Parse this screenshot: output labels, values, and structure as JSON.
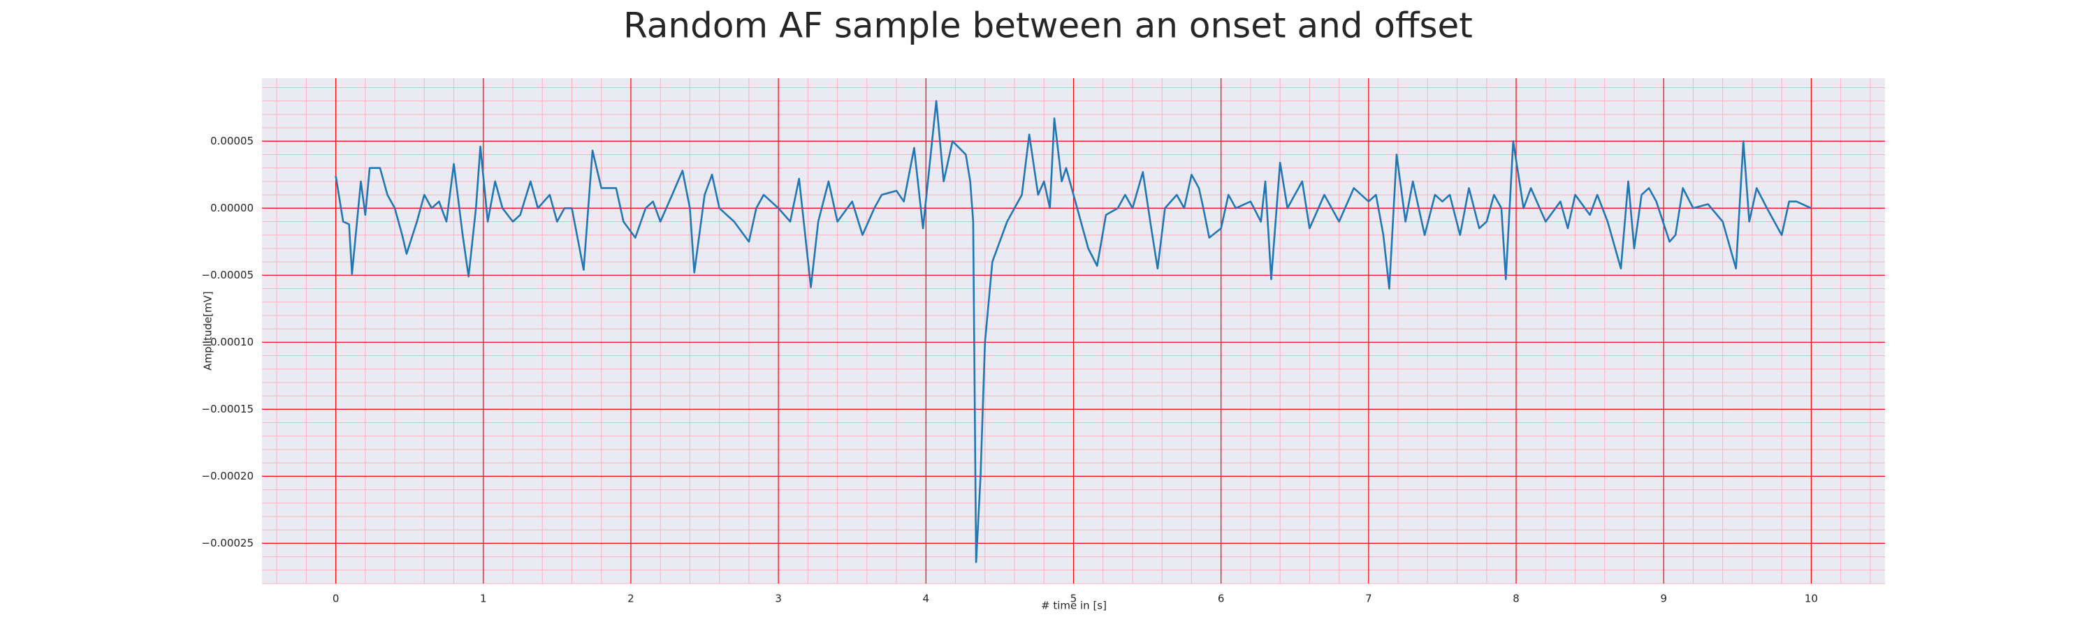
{
  "chart_data": {
    "type": "line",
    "title": "Random AF sample between an onset and offset",
    "xlabel": "# time in [s]",
    "ylabel": "Amplitude[mV]",
    "xlim": [
      -0.5,
      10.5
    ],
    "ylim": [
      -0.00028,
      9.7e-05
    ],
    "xticks": [
      0,
      1,
      2,
      3,
      4,
      5,
      6,
      7,
      8,
      9,
      10
    ],
    "yticks": [
      {
        "value": 5e-05,
        "label": "0.00005"
      },
      {
        "value": 0,
        "label": "0.00000"
      },
      {
        "value": -5e-05,
        "label": "−0.00005"
      },
      {
        "value": -0.0001,
        "label": "−0.00010"
      },
      {
        "value": -0.00015,
        "label": "−0.00015"
      },
      {
        "value": -0.0002,
        "label": "−0.00020"
      },
      {
        "value": -0.00025,
        "label": "−0.00025"
      }
    ],
    "grid": true,
    "minor_grid": true,
    "background": "#eaeaf2",
    "grid_color": "#ff0000",
    "minor_grid_color": "#ffb0c0",
    "series": [
      {
        "color": "#1f77b4",
        "x": [
          0,
          0.05,
          0.09,
          0.11,
          0.17,
          0.2,
          0.23,
          0.3,
          0.35,
          0.4,
          0.45,
          0.48,
          0.55,
          0.6,
          0.65,
          0.7,
          0.75,
          0.8,
          0.86,
          0.9,
          0.95,
          0.98,
          1.03,
          1.08,
          1.13,
          1.2,
          1.25,
          1.32,
          1.37,
          1.45,
          1.5,
          1.55,
          1.6,
          1.68,
          1.74,
          1.8,
          1.9,
          1.95,
          2.03,
          2.1,
          2.15,
          2.2,
          2.28,
          2.35,
          2.4,
          2.43,
          2.5,
          2.55,
          2.6,
          2.7,
          2.8,
          2.85,
          2.9,
          3.0,
          3.08,
          3.14,
          3.22,
          3.27,
          3.34,
          3.4,
          3.5,
          3.57,
          3.65,
          3.7,
          3.8,
          3.85,
          3.92,
          3.98,
          4.07,
          4.12,
          4.18,
          4.27,
          4.3,
          4.32,
          4.34,
          4.37,
          4.4,
          4.45,
          4.5,
          4.55,
          4.6,
          4.65,
          4.7,
          4.76,
          4.8,
          4.84,
          4.87,
          4.92,
          4.95,
          5.0,
          5.05,
          5.1,
          5.16,
          5.22,
          5.3,
          5.35,
          5.4,
          5.47,
          5.52,
          5.57,
          5.62,
          5.7,
          5.75,
          5.8,
          5.85,
          5.88,
          5.92,
          6.0,
          6.05,
          6.1,
          6.2,
          6.27,
          6.3,
          6.34,
          6.4,
          6.45,
          6.55,
          6.6,
          6.7,
          6.8,
          6.9,
          7.0,
          7.05,
          7.1,
          7.14,
          7.19,
          7.25,
          7.3,
          7.38,
          7.45,
          7.5,
          7.55,
          7.62,
          7.68,
          7.75,
          7.8,
          7.85,
          7.9,
          7.93,
          7.98,
          8.05,
          8.1,
          8.2,
          8.3,
          8.35,
          8.4,
          8.5,
          8.55,
          8.62,
          8.71,
          8.76,
          8.8,
          8.85,
          8.9,
          8.95,
          9.04,
          9.08,
          9.13,
          9.2,
          9.3,
          9.4,
          9.49,
          9.54,
          9.58,
          9.63,
          9.7,
          9.8,
          9.85,
          9.9,
          10.0
        ],
        "values": [
          2.4e-05,
          -1e-05,
          -1.2e-05,
          -4.9e-05,
          2e-05,
          -5e-06,
          3e-05,
          3e-05,
          1e-05,
          0,
          -2e-05,
          -3.4e-05,
          -1e-05,
          1e-05,
          0,
          5e-06,
          -1e-05,
          3.3e-05,
          -2e-05,
          -5.1e-05,
          0,
          4.6e-05,
          -1e-05,
          2e-05,
          0,
          -1e-05,
          -5e-06,
          2e-05,
          0,
          1e-05,
          -1e-05,
          0,
          0,
          -4.6e-05,
          4.3e-05,
          1.5e-05,
          1.5e-05,
          -1e-05,
          -2.2e-05,
          0,
          5e-06,
          -1e-05,
          1e-05,
          2.8e-05,
          0,
          -4.8e-05,
          1e-05,
          2.5e-05,
          0,
          -1e-05,
          -2.5e-05,
          0,
          1e-05,
          0,
          -1e-05,
          2.2e-05,
          -5.9e-05,
          -1e-05,
          2e-05,
          -1e-05,
          5e-06,
          -2e-05,
          0,
          1e-05,
          1.3e-05,
          5e-06,
          4.5e-05,
          -1.5e-05,
          8e-05,
          2e-05,
          5e-05,
          4e-05,
          2e-05,
          -1e-05,
          -0.000264,
          -0.0002,
          -0.0001,
          -4e-05,
          -2.5e-05,
          -1e-05,
          0,
          1e-05,
          5.5e-05,
          1e-05,
          2e-05,
          0,
          6.7e-05,
          2e-05,
          3e-05,
          1e-05,
          -1e-05,
          -3e-05,
          -4.3e-05,
          -5e-06,
          0,
          1e-05,
          0,
          2.7e-05,
          -1e-05,
          -4.5e-05,
          0,
          1e-05,
          0,
          2.5e-05,
          1.5e-05,
          0,
          -2.2e-05,
          -1.5e-05,
          1e-05,
          0,
          5e-06,
          -1e-05,
          2e-05,
          -5.3e-05,
          3.4e-05,
          0,
          2e-05,
          -1.5e-05,
          1e-05,
          -1e-05,
          1.5e-05,
          5e-06,
          1e-05,
          -2e-05,
          -6e-05,
          4e-05,
          -1e-05,
          2e-05,
          -2e-05,
          1e-05,
          5e-06,
          1e-05,
          -2e-05,
          1.5e-05,
          -1.5e-05,
          -1e-05,
          1e-05,
          0,
          -5.3e-05,
          5e-05,
          0,
          1.5e-05,
          -1e-05,
          5e-06,
          -1.5e-05,
          1e-05,
          -5e-06,
          1e-05,
          -1e-05,
          -4.5e-05,
          2e-05,
          -3e-05,
          1e-05,
          1.5e-05,
          5e-06,
          -2.5e-05,
          -2e-05,
          1.5e-05,
          0,
          3e-06,
          -1e-05,
          -4.5e-05,
          5e-05,
          -1e-05,
          1.5e-05,
          0,
          -2e-05,
          5e-06,
          5e-06,
          0
        ]
      }
    ]
  }
}
